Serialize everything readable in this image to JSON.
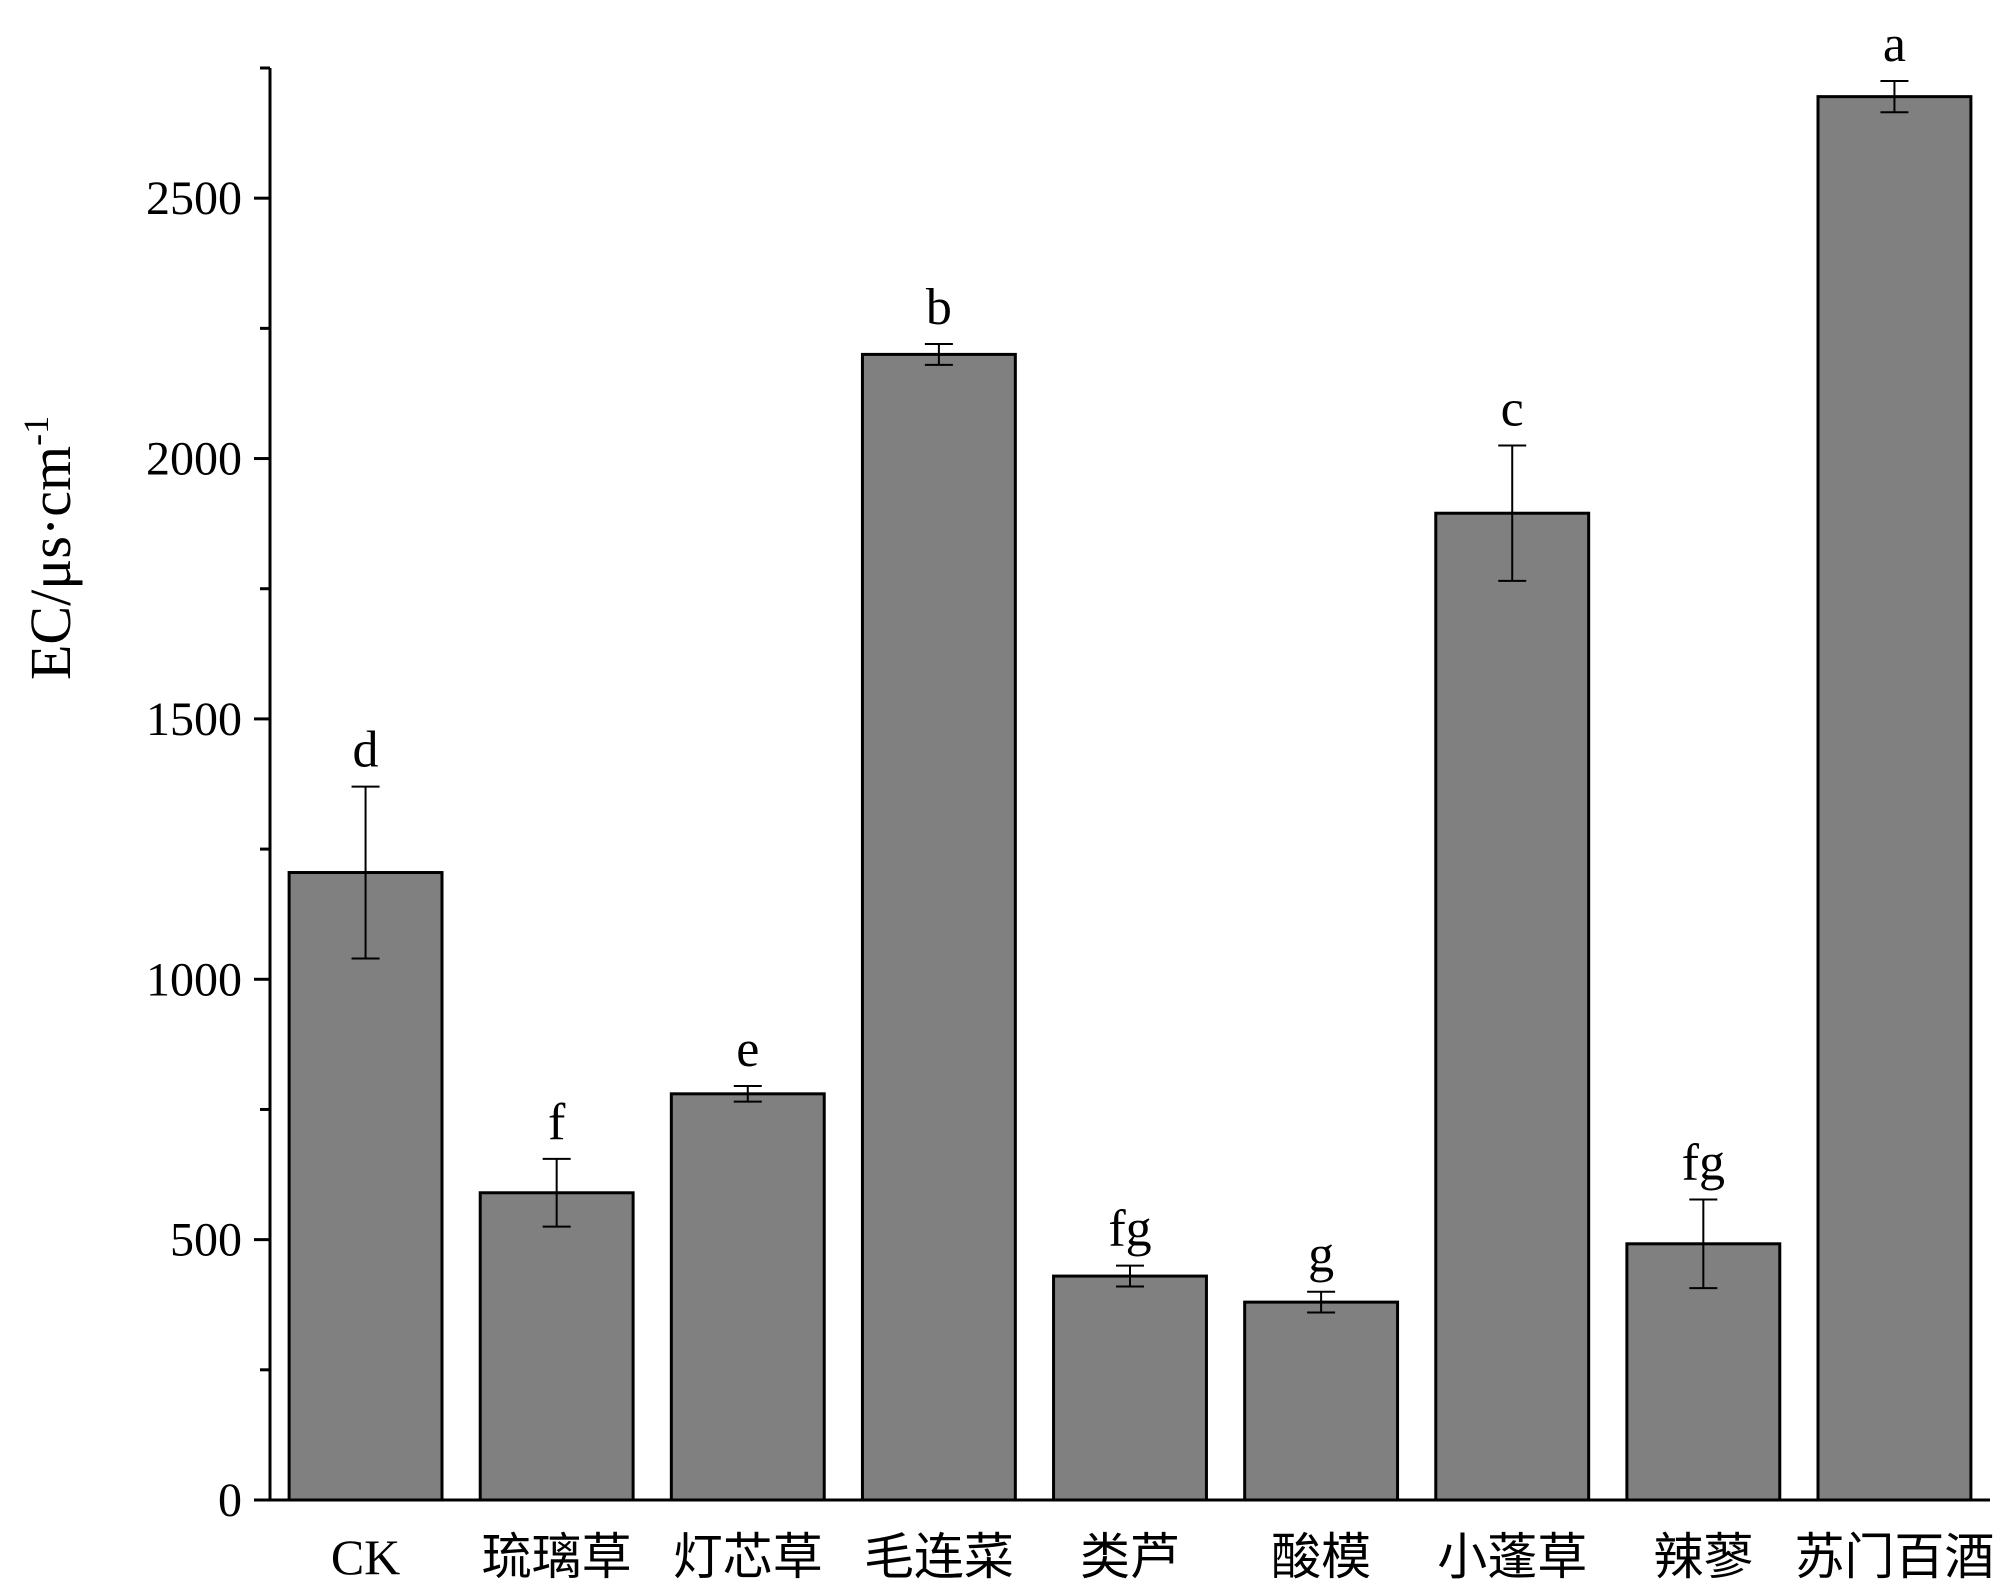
{
  "chart_data": {
    "type": "bar",
    "title": "",
    "xlabel": "",
    "ylabel": "EC/μs·cm",
    "ylabel_superscript": "-1",
    "ylim": [
      0,
      2750
    ],
    "yticks": [
      0,
      500,
      1000,
      1500,
      2000,
      2500
    ],
    "ytick_labels": [
      "0",
      "500",
      "1000",
      "1500",
      "2000",
      "2500"
    ],
    "grid": false,
    "bar_color": "#808080",
    "categories": [
      "CK",
      "琉璃草",
      "灯芯草",
      "毛连菜",
      "类芦",
      "酸模",
      "小蓬草",
      "辣蓼",
      "苏门百酒"
    ],
    "values": [
      1205,
      590,
      780,
      2200,
      430,
      380,
      1895,
      492,
      2695
    ],
    "errors": [
      165,
      65,
      15,
      20,
      20,
      20,
      130,
      85,
      30
    ],
    "significance": [
      "d",
      "f",
      "e",
      "b",
      "fg",
      "g",
      "c",
      "fg",
      "a"
    ]
  }
}
